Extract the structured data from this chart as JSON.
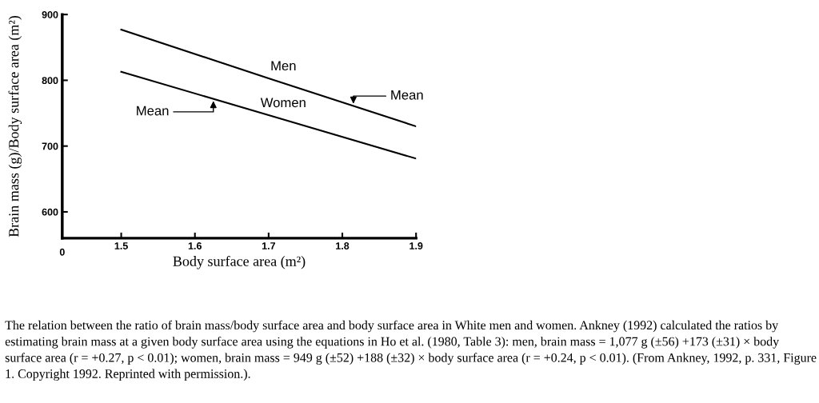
{
  "chart_data": {
    "type": "line",
    "xlabel": "Body surface area (m²)",
    "ylabel": "Brain mass (g)/Body surface area (m²)",
    "x": [
      1.5,
      1.7,
      1.9
    ],
    "series": [
      {
        "name": "Men",
        "color": "#000000",
        "values": [
          877,
          803,
          730
        ]
      },
      {
        "name": "Women",
        "color": "#000000",
        "values": [
          813,
          747,
          681
        ]
      }
    ],
    "xlim": [
      1.42,
      1.9
    ],
    "xticks": [
      {
        "value": 1.42,
        "label": null
      },
      1.5,
      1.6,
      1.7,
      1.8,
      1.9
    ],
    "ylim": [
      560,
      900
    ],
    "yticks": [
      600,
      700,
      800,
      900
    ],
    "grid": false,
    "legend": false,
    "marker": "none",
    "line_style": "solid",
    "annotations": [
      {
        "text": "Mean",
        "x": 1.815,
        "y": 761
      },
      {
        "text": "Mean",
        "x": 1.625,
        "y": 772
      },
      "0",
      "The relation between the ratio of brain mass/body surface area and body surface area in White men and women. Ankney (1992) calculated the ratios by estimating brain mass at a given body surface area using the equations in Ho et al. (1980, Table 3): men, brain mass = 1,077 g (±56) +173 (±31) × body surface area (r = +0.27, p < 0.01); women, brain mass = 949 g (±52) +188 (±32) × body surface area (r = +0.24, p < 0.01). (From Ankney, 1992, p. 331, Figure 1. Copyright 1992. Reprinted with permission.)."
    ]
  }
}
